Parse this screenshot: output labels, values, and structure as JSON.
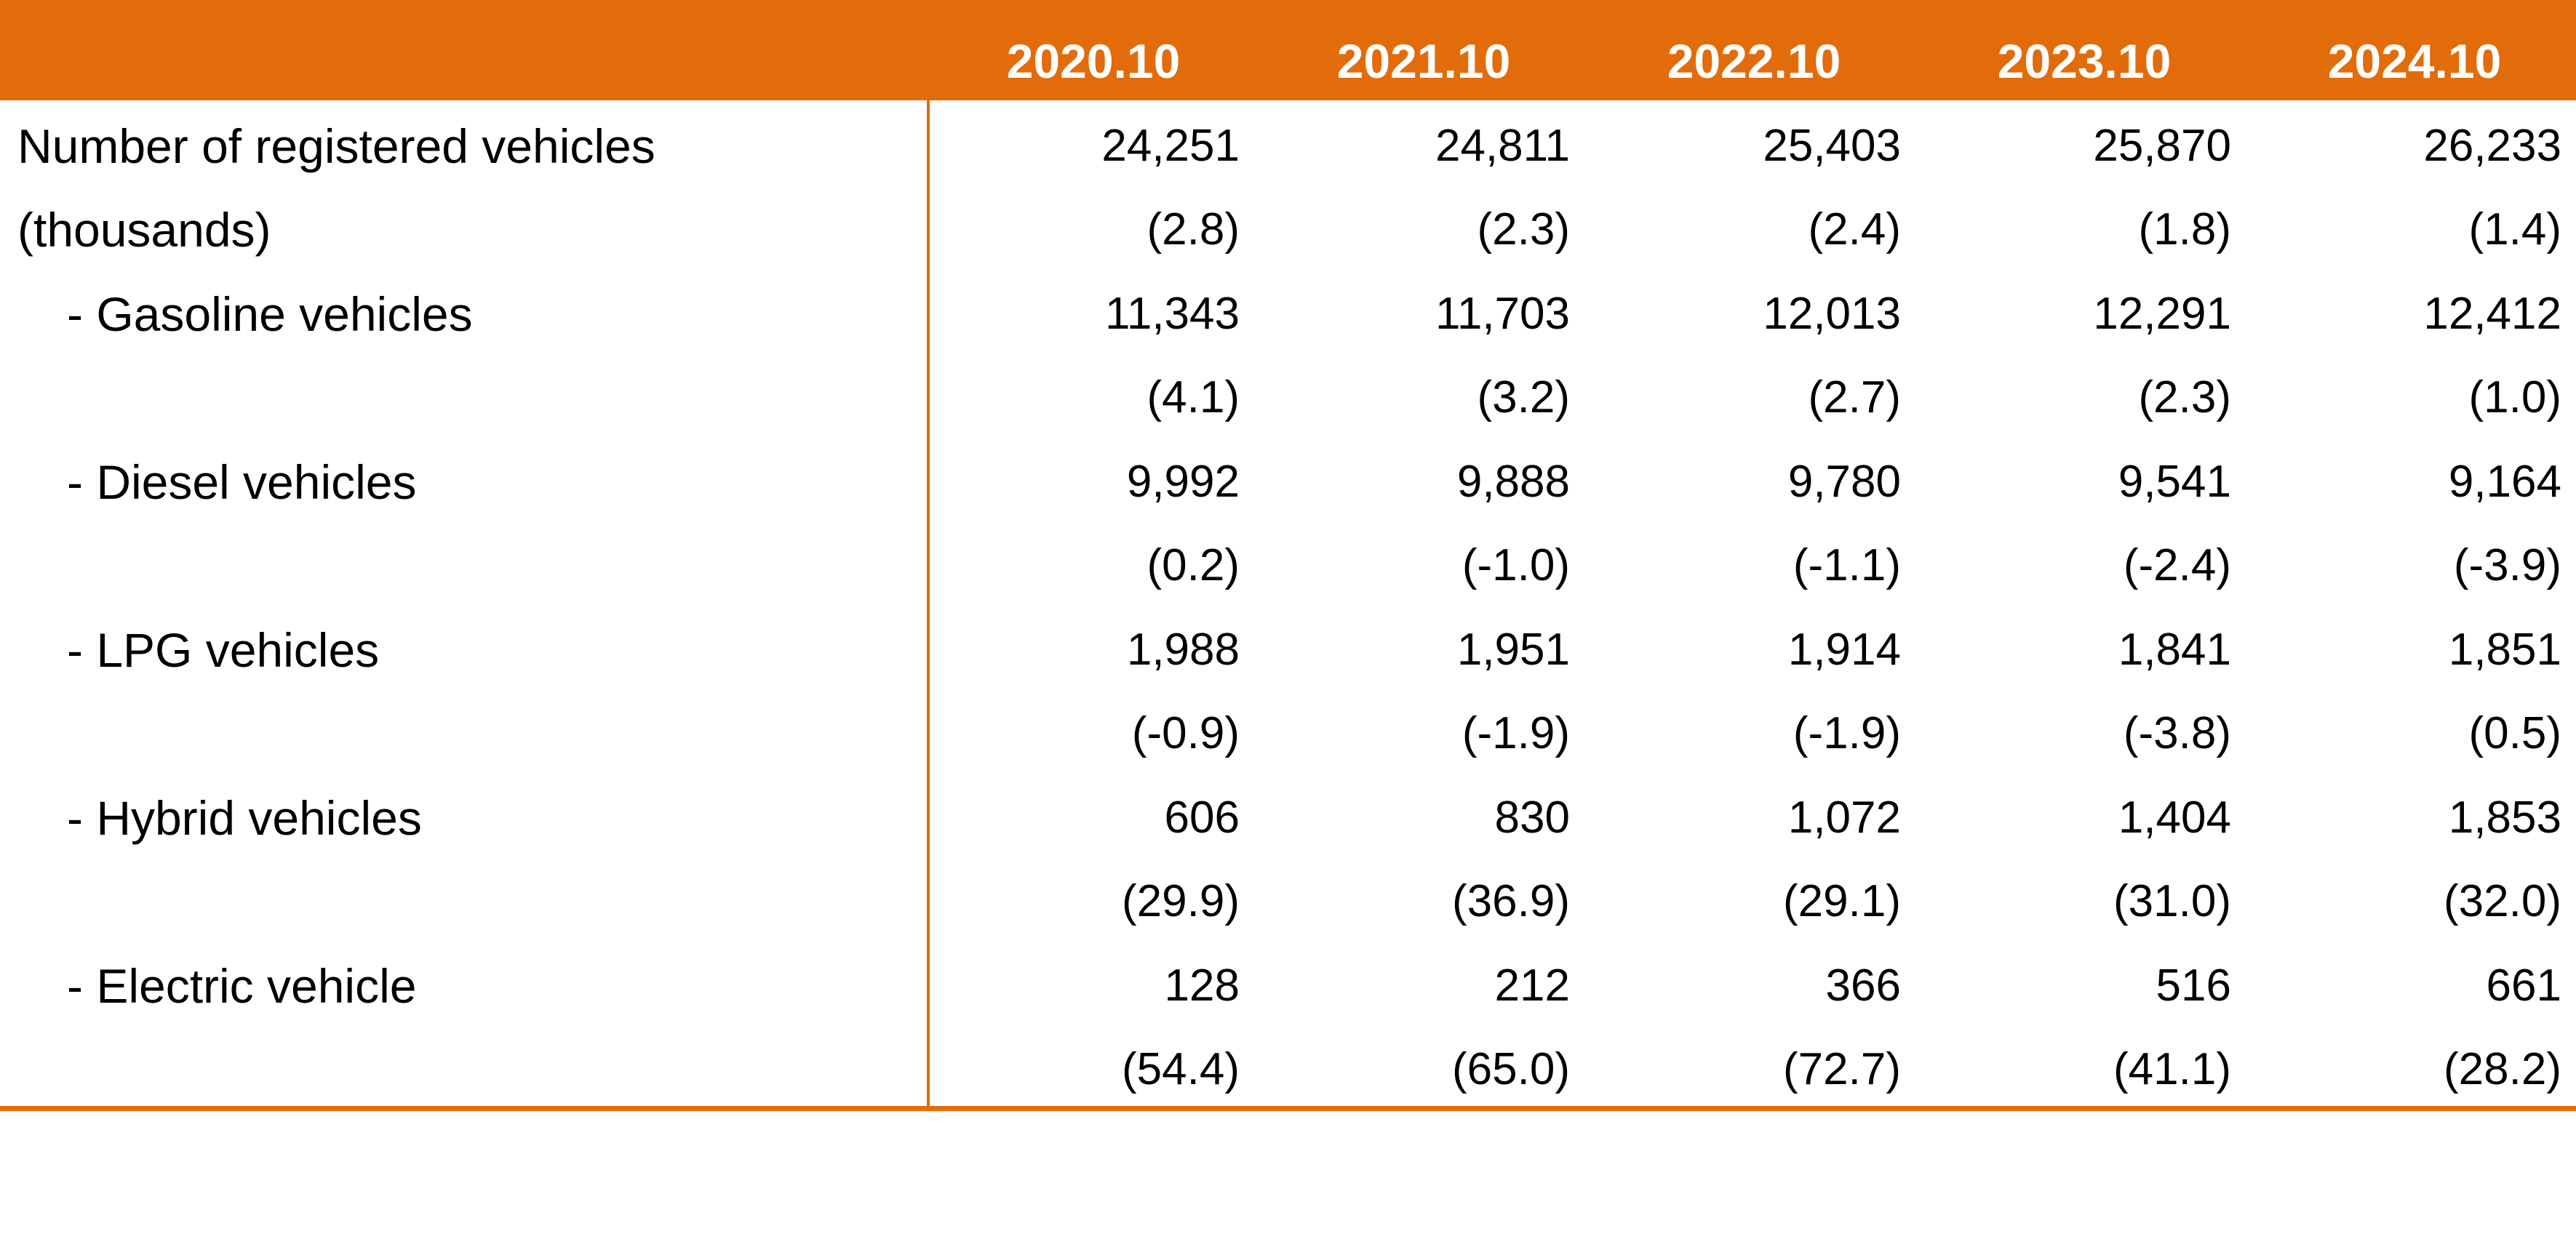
{
  "colors": {
    "accent": "#e36c0a",
    "header_text": "#ffffff",
    "body_text": "#000000"
  },
  "chart_data": {
    "type": "table",
    "columns": [
      "2020.10",
      "2021.10",
      "2022.10",
      "2023.10",
      "2024.10"
    ],
    "rows": [
      {
        "label": "Number of registered vehicles",
        "label_line2": "(thousands)",
        "values": [
          "24,251",
          "24,811",
          "25,403",
          "25,870",
          "26,233"
        ],
        "changes": [
          "(2.8)",
          "(2.3)",
          "(2.4)",
          "(1.8)",
          "(1.4)"
        ]
      },
      {
        "label": "- Gasoline vehicles",
        "values": [
          "11,343",
          "11,703",
          "12,013",
          "12,291",
          "12,412"
        ],
        "changes": [
          "(4.1)",
          "(3.2)",
          "(2.7)",
          "(2.3)",
          "(1.0)"
        ]
      },
      {
        "label": "- Diesel vehicles",
        "values": [
          "9,992",
          "9,888",
          "9,780",
          "9,541",
          "9,164"
        ],
        "changes": [
          "(0.2)",
          "(-1.0)",
          "(-1.1)",
          "(-2.4)",
          "(-3.9)"
        ]
      },
      {
        "label": "- LPG vehicles",
        "values": [
          "1,988",
          "1,951",
          "1,914",
          "1,841",
          "1,851"
        ],
        "changes": [
          "(-0.9)",
          "(-1.9)",
          "(-1.9)",
          "(-3.8)",
          "(0.5)"
        ]
      },
      {
        "label": "- Hybrid vehicles",
        "values": [
          "606",
          "830",
          "1,072",
          "1,404",
          "1,853"
        ],
        "changes": [
          "(29.9)",
          "(36.9)",
          "(29.1)",
          "(31.0)",
          "(32.0)"
        ]
      },
      {
        "label": "- Electric vehicle",
        "values": [
          "128",
          "212",
          "366",
          "516",
          "661"
        ],
        "changes": [
          "(54.4)",
          "(65.0)",
          "(72.7)",
          "(41.1)",
          "(28.2)"
        ]
      }
    ]
  }
}
